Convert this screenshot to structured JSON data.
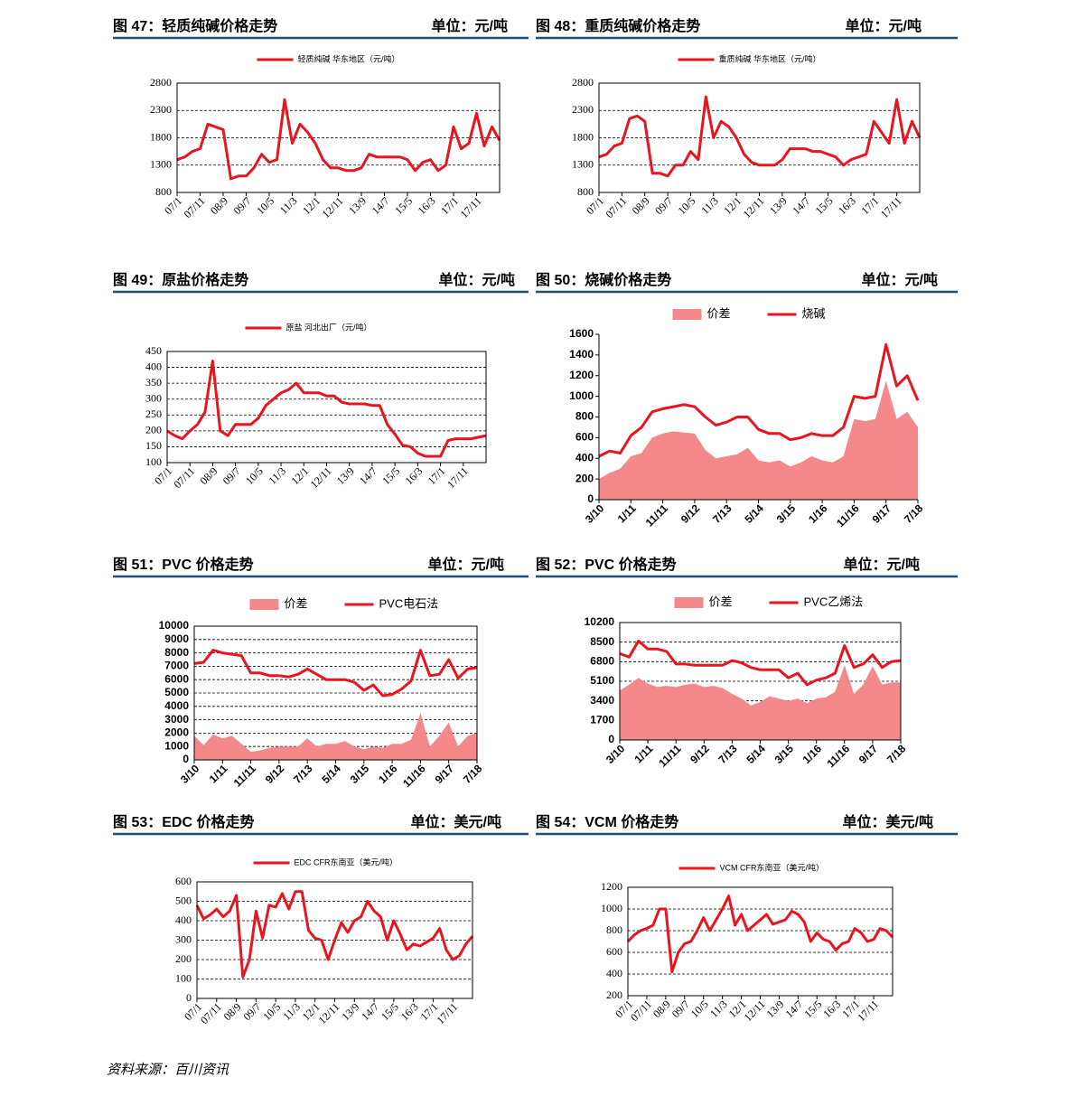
{
  "chart_data": [
    {
      "type": "line",
      "title": "图 47：轻质纯碱价格走势",
      "unit": "单位：元/吨",
      "categories": [
        "07/1",
        null,
        null,
        "07/11",
        null,
        null,
        "08/9",
        null,
        null,
        "09/7",
        null,
        null,
        "10/5",
        null,
        null,
        "11/3",
        null,
        null,
        "12/1",
        null,
        null,
        "12/11",
        null,
        null,
        "13/9",
        null,
        null,
        "14/7",
        null,
        null,
        "15/5",
        null,
        null,
        "16/3",
        null,
        null,
        "17/1",
        null,
        null,
        "17/11",
        null,
        null,
        null
      ],
      "series": [
        {
          "name": "轻质纯碱 华东地区（元/吨）",
          "type": "line",
          "color": "#e8141e",
          "values": [
            1400,
            1450,
            1550,
            1600,
            2050,
            2000,
            1950,
            1050,
            1100,
            1100,
            1250,
            1500,
            1350,
            1400,
            2500,
            1700,
            2050,
            1900,
            1700,
            1400,
            1250,
            1250,
            1200,
            1200,
            1250,
            1500,
            1450,
            1450,
            1450,
            1450,
            1400,
            1200,
            1350,
            1400,
            1200,
            1300,
            2000,
            1600,
            1700,
            2250,
            1650,
            2000,
            1750
          ]
        }
      ],
      "ylim": [
        800,
        2800
      ],
      "yticks": [
        800,
        1300,
        1800,
        2300,
        2800
      ],
      "grid": true
    },
    {
      "type": "line",
      "title": "图 48：重质纯碱价格走势",
      "unit": "单位：元/吨",
      "categories": [
        "07/1",
        null,
        null,
        "07/11",
        null,
        null,
        "08/9",
        null,
        null,
        "09/7",
        null,
        null,
        "10/5",
        null,
        null,
        "11/3",
        null,
        null,
        "12/1",
        null,
        null,
        "12/11",
        null,
        null,
        "13/9",
        null,
        null,
        "14/7",
        null,
        null,
        "15/5",
        null,
        null,
        "16/3",
        null,
        null,
        "17/1",
        null,
        null,
        "17/11",
        null,
        null,
        null
      ],
      "series": [
        {
          "name": "重质纯碱 华东地区（元/吨）",
          "type": "line",
          "color": "#e8141e",
          "values": [
            1450,
            1500,
            1650,
            1700,
            2150,
            2200,
            2100,
            1150,
            1150,
            1100,
            1300,
            1300,
            1550,
            1400,
            2550,
            1800,
            2100,
            2000,
            1800,
            1500,
            1350,
            1300,
            1300,
            1300,
            1400,
            1600,
            1600,
            1600,
            1550,
            1550,
            1500,
            1450,
            1300,
            1400,
            1450,
            1500,
            2100,
            1900,
            1700,
            2500,
            1700,
            2100,
            1800
          ]
        }
      ],
      "ylim": [
        800,
        2800
      ],
      "yticks": [
        800,
        1300,
        1800,
        2300,
        2800
      ],
      "grid": true
    },
    {
      "type": "line",
      "title": "图 49：原盐价格走势",
      "unit": "单位：元/吨",
      "categories": [
        "07/1",
        null,
        null,
        "07/11",
        null,
        null,
        "08/9",
        null,
        null,
        "09/7",
        null,
        null,
        "10/5",
        null,
        null,
        "11/3",
        null,
        null,
        "12/1",
        null,
        null,
        "12/11",
        null,
        null,
        "13/9",
        null,
        null,
        "14/7",
        null,
        null,
        "15/5",
        null,
        null,
        "16/3",
        null,
        null,
        "17/1",
        null,
        null,
        "17/11",
        null,
        null,
        null
      ],
      "series": [
        {
          "name": "原盐 河北出厂（元/吨）",
          "type": "line",
          "color": "#e8141e",
          "values": [
            200,
            185,
            175,
            200,
            220,
            260,
            420,
            200,
            185,
            220,
            220,
            220,
            240,
            280,
            300,
            320,
            330,
            350,
            320,
            320,
            320,
            310,
            310,
            290,
            285,
            285,
            285,
            280,
            280,
            220,
            190,
            155,
            150,
            130,
            120,
            120,
            120,
            170,
            175,
            175,
            175,
            180,
            185
          ]
        }
      ],
      "ylim": [
        100,
        450
      ],
      "yticks": [
        100,
        150,
        200,
        250,
        300,
        350,
        400,
        450
      ],
      "grid": true
    },
    {
      "type": "line",
      "title": "图 50：烧碱价格走势",
      "unit": "单位：元/吨",
      "categories": [
        "3/10",
        null,
        null,
        "1/11",
        null,
        null,
        "11/11",
        null,
        null,
        "9/12",
        null,
        null,
        "7/13",
        null,
        null,
        "5/14",
        null,
        null,
        "3/15",
        null,
        null,
        "1/16",
        null,
        null,
        "11/16",
        null,
        null,
        "9/17",
        null,
        null,
        "7/18"
      ],
      "series": [
        {
          "name": "价差",
          "type": "area",
          "color": "#f4888a",
          "values": [
            200,
            260,
            300,
            420,
            450,
            600,
            640,
            660,
            650,
            640,
            480,
            400,
            420,
            440,
            500,
            380,
            360,
            380,
            320,
            360,
            420,
            380,
            360,
            420,
            780,
            760,
            780,
            1150,
            780,
            850,
            700
          ]
        },
        {
          "name": "烧碱",
          "type": "line",
          "color": "#e8141e",
          "values": [
            420,
            470,
            450,
            620,
            700,
            850,
            880,
            900,
            920,
            900,
            800,
            720,
            750,
            800,
            800,
            680,
            640,
            640,
            580,
            600,
            640,
            620,
            620,
            700,
            1000,
            980,
            1000,
            1500,
            1100,
            1200,
            960
          ]
        }
      ],
      "ylim": [
        0,
        1600
      ],
      "yticks": [
        0,
        200,
        400,
        600,
        800,
        1000,
        1200,
        1400,
        1600
      ],
      "grid": false
    },
    {
      "type": "line",
      "title": "图 51：PVC 价格走势",
      "unit": "单位：元/吨",
      "categories": [
        "3/10",
        null,
        null,
        "1/11",
        null,
        null,
        "11/11",
        null,
        null,
        "9/12",
        null,
        null,
        "7/13",
        null,
        null,
        "5/14",
        null,
        null,
        "3/15",
        null,
        null,
        "1/16",
        null,
        null,
        "11/16",
        null,
        null,
        "9/17",
        null,
        null,
        "7/18"
      ],
      "series": [
        {
          "name": "价差",
          "type": "area",
          "color": "#f4888a",
          "values": [
            1800,
            1100,
            1900,
            1600,
            1800,
            1200,
            600,
            700,
            900,
            1000,
            1000,
            1000,
            1600,
            1000,
            1200,
            1200,
            1400,
            1000,
            800,
            1000,
            900,
            1200,
            1200,
            1500,
            3500,
            1000,
            1800,
            2800,
            1000,
            1800,
            2000
          ]
        },
        {
          "name": "PVC电石法",
          "type": "line",
          "color": "#e8141e",
          "values": [
            7200,
            7300,
            8200,
            8000,
            7900,
            7800,
            6500,
            6500,
            6300,
            6300,
            6200,
            6400,
            6800,
            6400,
            6000,
            6000,
            6000,
            5800,
            5200,
            5600,
            4800,
            4900,
            5300,
            5900,
            8200,
            6300,
            6400,
            7500,
            6100,
            6800,
            6900
          ]
        }
      ],
      "ylim": [
        0,
        10000
      ],
      "yticks": [
        0,
        1000,
        2000,
        3000,
        4000,
        5000,
        6000,
        7000,
        8000,
        9000,
        10000
      ],
      "grid": true
    },
    {
      "type": "line",
      "title": "图 52：PVC 价格走势",
      "unit": "单位：元/吨",
      "categories": [
        "3/10",
        null,
        null,
        "1/11",
        null,
        null,
        "11/11",
        null,
        null,
        "9/12",
        null,
        null,
        "7/13",
        null,
        null,
        "5/14",
        null,
        null,
        "3/15",
        null,
        null,
        "1/16",
        null,
        null,
        "11/16",
        null,
        null,
        "9/17",
        null,
        null,
        "7/18"
      ],
      "series": [
        {
          "name": "价差",
          "type": "area",
          "color": "#f4888a",
          "values": [
            4300,
            4800,
            5400,
            4900,
            4600,
            4700,
            4600,
            4800,
            4900,
            4600,
            4700,
            4500,
            4000,
            3600,
            3000,
            3300,
            3800,
            3600,
            3400,
            3600,
            3200,
            3600,
            3700,
            4200,
            6500,
            4000,
            4800,
            6400,
            4800,
            5000,
            5000
          ]
        },
        {
          "name": "PVC乙烯法",
          "type": "line",
          "color": "#e8141e",
          "values": [
            7500,
            7200,
            8600,
            7900,
            7900,
            7700,
            6600,
            6600,
            6500,
            6500,
            6500,
            6500,
            6900,
            6700,
            6300,
            6100,
            6100,
            6100,
            5400,
            5800,
            4800,
            5200,
            5400,
            5800,
            8200,
            6300,
            6600,
            7400,
            6300,
            6800,
            6900
          ]
        }
      ],
      "ylim": [
        0,
        10200
      ],
      "yticks": [
        0,
        1700,
        3400,
        5100,
        6800,
        8500,
        10200
      ],
      "grid": true
    },
    {
      "type": "line",
      "title": "图 53：EDC 价格走势",
      "unit": "单位：美元/吨",
      "categories": [
        "07/1",
        null,
        null,
        "07/11",
        null,
        null,
        "08/9",
        null,
        null,
        "09/7",
        null,
        null,
        "10/5",
        null,
        null,
        "11/3",
        null,
        null,
        "12/1",
        null,
        null,
        "12/11",
        null,
        null,
        "13/9",
        null,
        null,
        "14/7",
        null,
        null,
        "15/5",
        null,
        null,
        "16/3",
        null,
        null,
        "17/1",
        null,
        null,
        "17/11",
        null,
        null,
        null
      ],
      "series": [
        {
          "name": "EDC CFR东南亚（美元/吨）",
          "type": "line",
          "color": "#e8141e",
          "values": [
            480,
            410,
            430,
            460,
            420,
            450,
            530,
            110,
            200,
            450,
            310,
            480,
            470,
            540,
            460,
            550,
            550,
            350,
            310,
            300,
            200,
            300,
            390,
            340,
            400,
            420,
            500,
            450,
            420,
            300,
            400,
            330,
            250,
            280,
            270,
            290,
            310,
            360,
            250,
            200,
            220,
            280,
            320
          ]
        }
      ],
      "ylim": [
        0,
        600
      ],
      "yticks": [
        0,
        100,
        200,
        300,
        400,
        500,
        600
      ],
      "grid": true
    },
    {
      "type": "line",
      "title": "图 54：VCM 价格走势",
      "unit": "单位：美元/吨",
      "categories": [
        "07/1",
        null,
        null,
        "07/11",
        null,
        null,
        "08/9",
        null,
        null,
        "09/7",
        null,
        null,
        "10/5",
        null,
        null,
        "11/3",
        null,
        null,
        "12/1",
        null,
        null,
        "12/11",
        null,
        null,
        "13/9",
        null,
        null,
        "14/7",
        null,
        null,
        "15/5",
        null,
        null,
        "16/3",
        null,
        null,
        "17/1",
        null,
        null,
        "17/11",
        null,
        null,
        null
      ],
      "series": [
        {
          "name": "VCM CFR东南亚（美元/吨）",
          "type": "line",
          "color": "#e8141e",
          "values": [
            700,
            760,
            800,
            820,
            850,
            1000,
            1000,
            420,
            600,
            680,
            700,
            800,
            920,
            800,
            900,
            1000,
            1120,
            850,
            950,
            800,
            850,
            900,
            950,
            860,
            880,
            900,
            980,
            950,
            880,
            700,
            780,
            720,
            700,
            620,
            680,
            700,
            820,
            780,
            700,
            720,
            820,
            800,
            740
          ]
        }
      ],
      "ylim": [
        200,
        1200
      ],
      "yticks": [
        200,
        400,
        600,
        800,
        1000,
        1200
      ],
      "grid": true
    }
  ],
  "source": "资料来源：百川资讯"
}
